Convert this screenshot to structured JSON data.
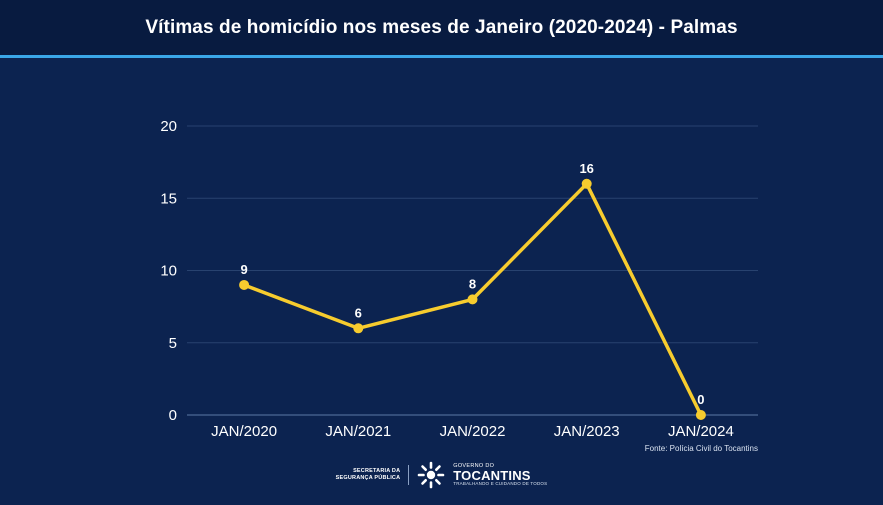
{
  "header": {
    "title": "Vítimas de homicídio nos meses de Janeiro (2020-2024) - Palmas"
  },
  "chart_data": {
    "type": "line",
    "categories": [
      "JAN/2020",
      "JAN/2021",
      "JAN/2022",
      "JAN/2023",
      "JAN/2024"
    ],
    "values": [
      9,
      6,
      8,
      16,
      0
    ],
    "data_labels": [
      "9",
      "6",
      "8",
      "16",
      "0"
    ],
    "ylim": [
      0,
      20
    ],
    "yticks": [
      0,
      5,
      10,
      15,
      20
    ],
    "ytick_labels": [
      "0",
      "5",
      "10",
      "15",
      "20"
    ],
    "grid": true,
    "line_color": "#f7cc2e",
    "background_color": "#0c2350"
  },
  "source": {
    "text": "Fonte: Polícia Civil do Tocantins"
  },
  "footer": {
    "secretariat_line1": "SECRETARIA DA",
    "secretariat_line2": "SEGURANÇA PÚBLICA",
    "gov_top": "GOVERNO DO",
    "gov_name": "TOCANTINS",
    "gov_slogan": "TRABALHANDO E CUIDANDO DE TODOS"
  }
}
